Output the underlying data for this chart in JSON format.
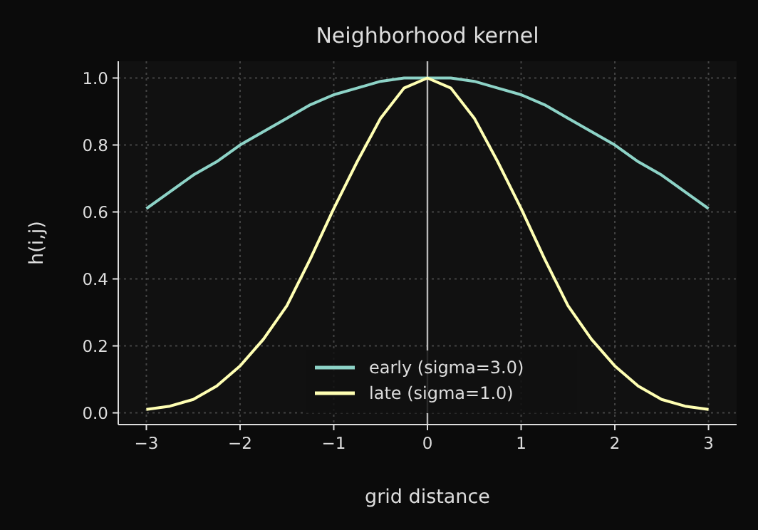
{
  "chart_data": {
    "type": "line",
    "title": "Neighborhood kernel",
    "xlabel": "grid distance",
    "ylabel": "h(i,j)",
    "x": [
      -3,
      -2.75,
      -2.5,
      -2.25,
      -2,
      -1.75,
      -1.5,
      -1.25,
      -1,
      -0.75,
      -0.5,
      -0.25,
      0,
      0.25,
      0.5,
      0.75,
      1,
      1.25,
      1.5,
      1.75,
      2,
      2.25,
      2.5,
      2.75,
      3
    ],
    "series": [
      {
        "name": "early (sigma=3.0)",
        "color": "#8dd3c7",
        "values": [
          0.61,
          0.66,
          0.71,
          0.75,
          0.8,
          0.84,
          0.88,
          0.92,
          0.95,
          0.97,
          0.99,
          1.0,
          1.0,
          1.0,
          0.99,
          0.97,
          0.95,
          0.92,
          0.88,
          0.84,
          0.8,
          0.75,
          0.71,
          0.66,
          0.61
        ]
      },
      {
        "name": "late (sigma=1.0)",
        "color": "#ffffb3",
        "values": [
          0.01,
          0.02,
          0.04,
          0.08,
          0.14,
          0.22,
          0.32,
          0.46,
          0.61,
          0.75,
          0.88,
          0.97,
          1.0,
          0.97,
          0.88,
          0.75,
          0.61,
          0.46,
          0.32,
          0.22,
          0.14,
          0.08,
          0.04,
          0.02,
          0.01
        ]
      }
    ],
    "xlim": [
      -3.3,
      3.3
    ],
    "ylim": [
      -0.035,
      1.05
    ],
    "xticks": [
      {
        "value": -3,
        "label": "−3"
      },
      {
        "value": -2,
        "label": "−2"
      },
      {
        "value": -1,
        "label": "−1"
      },
      0,
      1,
      2,
      3
    ],
    "yticks": [
      {
        "value": 0,
        "label": "0.0"
      },
      {
        "value": 0.2,
        "label": "0.2"
      },
      {
        "value": 0.4,
        "label": "0.4"
      },
      {
        "value": 0.6,
        "label": "0.6"
      },
      {
        "value": 0.8,
        "label": "0.8"
      },
      {
        "value": 1,
        "label": "1.0"
      }
    ],
    "ref_lines": [
      {
        "axis": "x",
        "value": 0,
        "color": "#bbbbbb"
      }
    ],
    "grid": true,
    "legend": "bottom",
    "line_style": "solid",
    "marker": "none"
  }
}
